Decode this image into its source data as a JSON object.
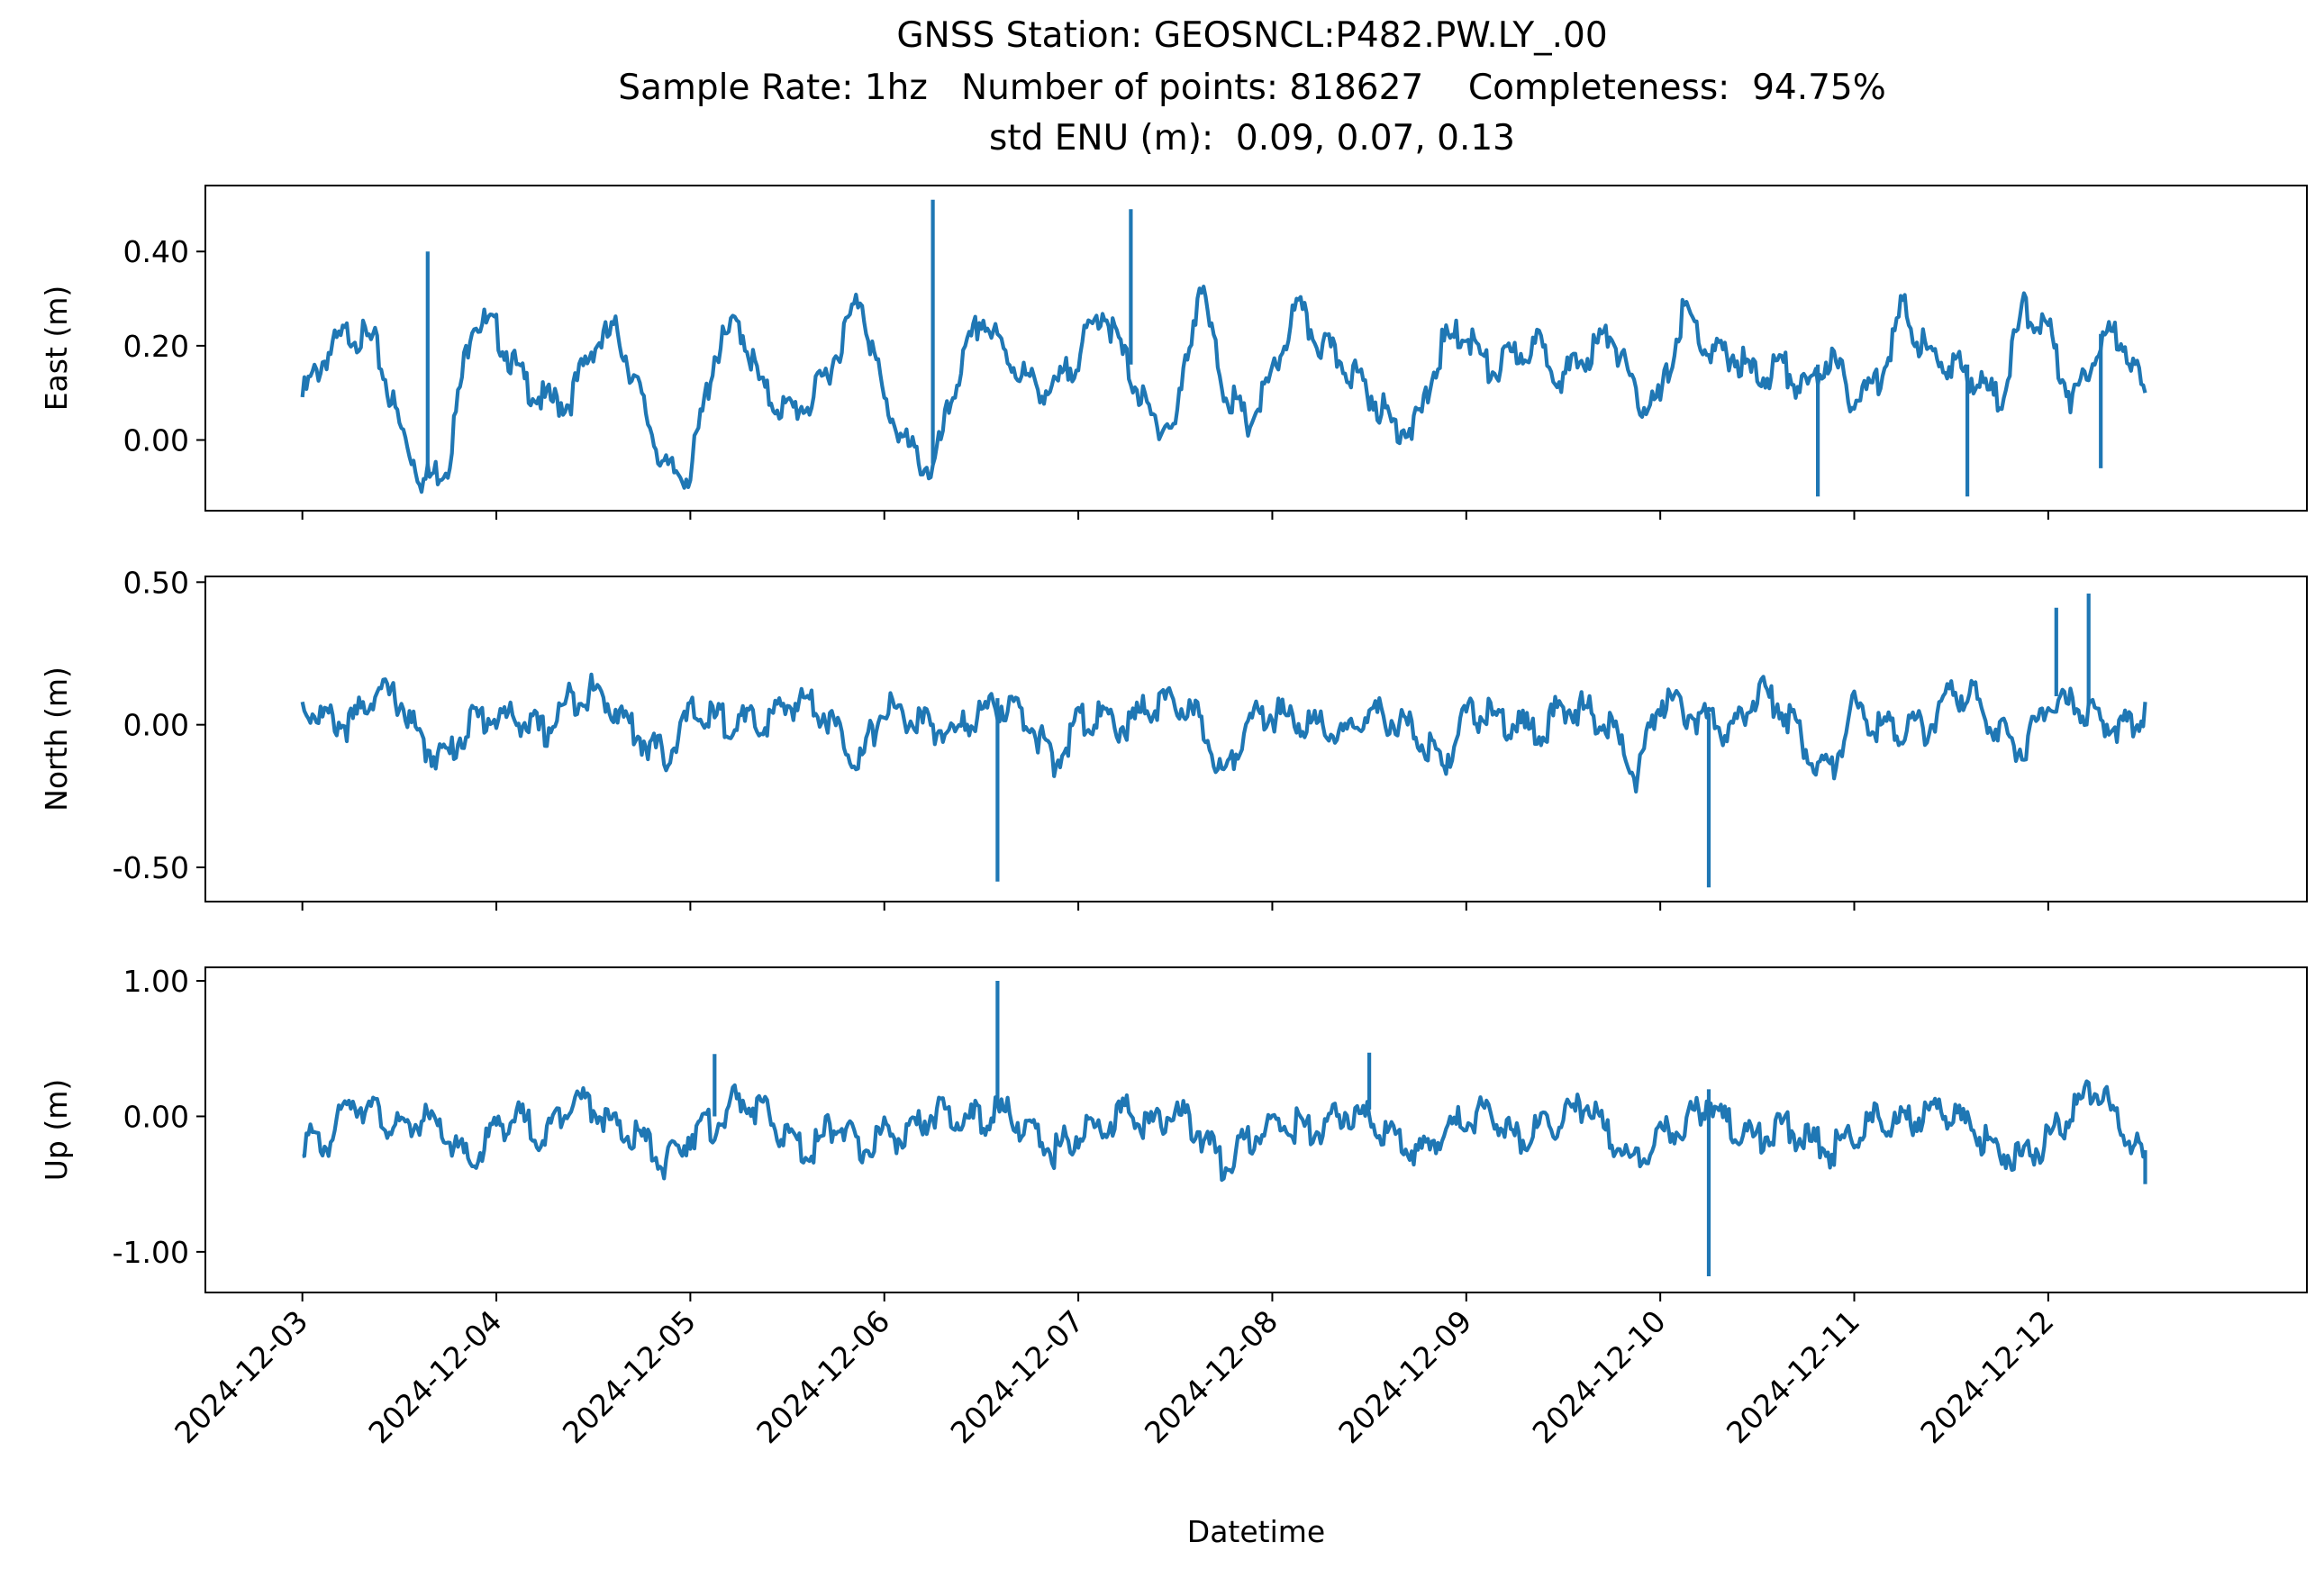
{
  "title": {
    "line1": "GNSS Station: GEOSNCL:P482.PW.LY_.00",
    "line2": "Sample Rate: 1hz   Number of points: 818627    Completeness:  94.75%",
    "line3": "std ENU (m):  0.09, 0.07, 0.13"
  },
  "colors": {
    "series": "#1f77b4",
    "axes": "#000000",
    "background": "#ffffff"
  },
  "chart_data": [
    {
      "type": "line",
      "ylabel": "East (m)",
      "xlabel": "",
      "ylim": [
        -0.15,
        0.54
      ],
      "yticks": [
        0.0,
        0.2,
        0.4
      ],
      "ytick_labels": [
        "0.00",
        "0.20",
        "0.40"
      ],
      "xlim": [
        "2024-12-02 12:00",
        "2024-12-13 08:00"
      ],
      "grid": false,
      "series": [
        {
          "x": [
            "2024-12-03 00:00",
            "2024-12-03 03:00",
            "2024-12-03 06:00",
            "2024-12-03 09:00",
            "2024-12-03 12:00",
            "2024-12-03 15:00",
            "2024-12-03 18:00",
            "2024-12-03 21:00",
            "2024-12-04 00:00",
            "2024-12-04 03:00",
            "2024-12-04 06:00",
            "2024-12-04 09:00",
            "2024-12-04 12:00",
            "2024-12-04 15:00",
            "2024-12-04 18:00",
            "2024-12-04 21:00",
            "2024-12-05 00:00",
            "2024-12-05 03:00",
            "2024-12-05 06:00",
            "2024-12-05 09:00",
            "2024-12-05 12:00",
            "2024-12-05 15:00",
            "2024-12-05 18:00",
            "2024-12-05 21:00",
            "2024-12-06 00:00",
            "2024-12-06 03:00",
            "2024-12-06 06:00",
            "2024-12-06 09:00",
            "2024-12-06 12:00",
            "2024-12-06 15:00",
            "2024-12-06 18:00",
            "2024-12-06 21:00",
            "2024-12-07 00:00",
            "2024-12-07 03:00",
            "2024-12-07 06:00",
            "2024-12-07 09:00",
            "2024-12-07 12:00",
            "2024-12-07 15:00",
            "2024-12-07 18:00",
            "2024-12-07 21:00",
            "2024-12-08 00:00",
            "2024-12-08 03:00",
            "2024-12-08 06:00",
            "2024-12-08 09:00",
            "2024-12-08 12:00",
            "2024-12-08 15:00",
            "2024-12-08 18:00",
            "2024-12-08 21:00",
            "2024-12-09 00:00",
            "2024-12-09 03:00",
            "2024-12-09 06:00",
            "2024-12-09 09:00",
            "2024-12-09 12:00",
            "2024-12-09 15:00",
            "2024-12-09 18:00",
            "2024-12-09 21:00",
            "2024-12-10 00:00",
            "2024-12-10 03:00",
            "2024-12-10 06:00",
            "2024-12-10 09:00",
            "2024-12-10 12:00",
            "2024-12-10 15:00",
            "2024-12-10 18:00",
            "2024-12-10 21:00",
            "2024-12-11 00:00",
            "2024-12-11 03:00",
            "2024-12-11 06:00",
            "2024-12-11 09:00",
            "2024-12-11 12:00",
            "2024-12-11 15:00",
            "2024-12-11 18:00",
            "2024-12-11 21:00",
            "2024-12-12 00:00",
            "2024-12-12 03:00",
            "2024-12-12 06:00",
            "2024-12-12 09:00",
            "2024-12-12 12:00"
          ],
          "values": [
            0.11,
            0.2,
            0.25,
            0.22,
            0.05,
            -0.07,
            -0.03,
            0.28,
            0.25,
            0.15,
            0.1,
            0.1,
            0.22,
            0.25,
            0.1,
            -0.05,
            -0.05,
            0.2,
            0.27,
            0.12,
            0.08,
            0.1,
            0.2,
            0.33,
            0.1,
            0.0,
            -0.05,
            0.15,
            0.28,
            0.2,
            0.14,
            0.12,
            0.2,
            0.3,
            0.18,
            0.06,
            0.05,
            0.35,
            0.13,
            0.05,
            0.15,
            0.3,
            0.22,
            0.18,
            0.12,
            0.05,
            0.05,
            0.22,
            0.25,
            0.16,
            0.2,
            0.22,
            0.15,
            0.2,
            0.25,
            0.1,
            0.1,
            0.3,
            0.2,
            0.2,
            0.15,
            0.18,
            0.12,
            0.2,
            0.1,
            0.15,
            0.3,
            0.2,
            0.18,
            0.15,
            0.1,
            0.3,
            0.25,
            0.1,
            0.22,
            0.25,
            0.1
          ],
          "spikes": [
            [
              "2024-12-03 15:30",
              0.4
            ],
            [
              "2024-12-06 06:00",
              0.51
            ],
            [
              "2024-12-07 06:30",
              0.49
            ],
            [
              "2024-12-10 19:30",
              -0.12
            ],
            [
              "2024-12-11 14:00",
              -0.12
            ],
            [
              "2024-12-12 06:30",
              -0.06
            ]
          ]
        }
      ]
    },
    {
      "type": "line",
      "ylabel": "North (m)",
      "xlabel": "",
      "ylim": [
        -0.62,
        0.52
      ],
      "yticks": [
        -0.5,
        0.0,
        0.5
      ],
      "ytick_labels": [
        "-0.50",
        "0.00",
        "0.50"
      ],
      "xlim": [
        "2024-12-02 12:00",
        "2024-12-13 08:00"
      ],
      "grid": false,
      "series": [
        {
          "x": [
            "2024-12-03 00:00",
            "2024-12-03 03:00",
            "2024-12-03 06:00",
            "2024-12-03 09:00",
            "2024-12-03 12:00",
            "2024-12-03 15:00",
            "2024-12-03 18:00",
            "2024-12-03 21:00",
            "2024-12-04 00:00",
            "2024-12-04 03:00",
            "2024-12-04 06:00",
            "2024-12-04 09:00",
            "2024-12-04 12:00",
            "2024-12-04 15:00",
            "2024-12-04 18:00",
            "2024-12-04 21:00",
            "2024-12-05 00:00",
            "2024-12-05 03:00",
            "2024-12-05 06:00",
            "2024-12-05 09:00",
            "2024-12-05 12:00",
            "2024-12-05 15:00",
            "2024-12-05 18:00",
            "2024-12-05 21:00",
            "2024-12-06 00:00",
            "2024-12-06 03:00",
            "2024-12-06 06:00",
            "2024-12-06 09:00",
            "2024-12-06 12:00",
            "2024-12-06 15:00",
            "2024-12-06 18:00",
            "2024-12-06 21:00",
            "2024-12-07 00:00",
            "2024-12-07 03:00",
            "2024-12-07 06:00",
            "2024-12-07 09:00",
            "2024-12-07 12:00",
            "2024-12-07 15:00",
            "2024-12-07 18:00",
            "2024-12-07 21:00",
            "2024-12-08 00:00",
            "2024-12-08 03:00",
            "2024-12-08 06:00",
            "2024-12-08 09:00",
            "2024-12-08 12:00",
            "2024-12-08 15:00",
            "2024-12-08 18:00",
            "2024-12-08 21:00",
            "2024-12-09 00:00",
            "2024-12-09 03:00",
            "2024-12-09 06:00",
            "2024-12-09 09:00",
            "2024-12-09 12:00",
            "2024-12-09 15:00",
            "2024-12-09 18:00",
            "2024-12-09 21:00",
            "2024-12-10 00:00",
            "2024-12-10 03:00",
            "2024-12-10 06:00",
            "2024-12-10 09:00",
            "2024-12-10 12:00",
            "2024-12-10 15:00",
            "2024-12-10 18:00",
            "2024-12-10 21:00",
            "2024-12-11 00:00",
            "2024-12-11 03:00",
            "2024-12-11 06:00",
            "2024-12-11 09:00",
            "2024-12-11 12:00",
            "2024-12-11 15:00",
            "2024-12-11 18:00",
            "2024-12-11 21:00",
            "2024-12-12 00:00",
            "2024-12-12 03:00",
            "2024-12-12 06:00",
            "2024-12-12 09:00",
            "2024-12-12 12:00"
          ],
          "values": [
            0.1,
            0.05,
            0.03,
            0.15,
            0.12,
            -0.05,
            -0.08,
            0.05,
            0.06,
            0.05,
            0.0,
            0.12,
            0.15,
            0.08,
            -0.02,
            -0.08,
            0.07,
            0.05,
            0.04,
            0.03,
            0.1,
            0.12,
            0.02,
            -0.1,
            0.1,
            0.05,
            0.02,
            0.0,
            0.08,
            0.1,
            0.05,
            -0.12,
            0.05,
            0.05,
            0.02,
            0.1,
            0.1,
            0.05,
            -0.15,
            0.05,
            0.07,
            0.05,
            0.02,
            -0.02,
            0.08,
            0.05,
            0.0,
            -0.12,
            0.07,
            0.06,
            0.03,
            0.0,
            0.1,
            0.08,
            0.02,
            -0.15,
            0.12,
            0.08,
            0.04,
            0.0,
            0.15,
            0.1,
            -0.05,
            -0.15,
            0.1,
            0.03,
            0.02,
            0.02,
            0.15,
            0.12,
            0.0,
            -0.05,
            0.1,
            0.1,
            0.05,
            0.02,
            0.08
          ],
          "spikes": [
            [
              "2024-12-06 14:00",
              -0.55
            ],
            [
              "2024-12-10 06:00",
              -0.57
            ],
            [
              "2024-12-12 01:00",
              0.41
            ],
            [
              "2024-12-12 05:00",
              0.46
            ]
          ]
        }
      ]
    },
    {
      "type": "line",
      "ylabel": "Up (m)",
      "xlabel": "Datetime",
      "ylim": [
        -1.3,
        1.1
      ],
      "yticks": [
        -1.0,
        0.0,
        1.0
      ],
      "ytick_labels": [
        "-1.00",
        "0.00",
        "1.00"
      ],
      "xlim": [
        "2024-12-02 12:00",
        "2024-12-13 08:00"
      ],
      "xtick_labels": [
        "2024-12-03",
        "2024-12-04",
        "2024-12-05",
        "2024-12-06",
        "2024-12-07",
        "2024-12-08",
        "2024-12-09",
        "2024-12-10",
        "2024-12-11",
        "2024-12-12"
      ],
      "grid": false,
      "series": [
        {
          "x": [
            "2024-12-03 00:00",
            "2024-12-03 03:00",
            "2024-12-03 06:00",
            "2024-12-03 09:00",
            "2024-12-03 12:00",
            "2024-12-03 15:00",
            "2024-12-03 18:00",
            "2024-12-03 21:00",
            "2024-12-04 00:00",
            "2024-12-04 03:00",
            "2024-12-04 06:00",
            "2024-12-04 09:00",
            "2024-12-04 12:00",
            "2024-12-04 15:00",
            "2024-12-04 18:00",
            "2024-12-04 21:00",
            "2024-12-05 00:00",
            "2024-12-05 03:00",
            "2024-12-05 06:00",
            "2024-12-05 09:00",
            "2024-12-05 12:00",
            "2024-12-05 15:00",
            "2024-12-05 18:00",
            "2024-12-05 21:00",
            "2024-12-06 00:00",
            "2024-12-06 03:00",
            "2024-12-06 06:00",
            "2024-12-06 09:00",
            "2024-12-06 12:00",
            "2024-12-06 15:00",
            "2024-12-06 18:00",
            "2024-12-06 21:00",
            "2024-12-07 00:00",
            "2024-12-07 03:00",
            "2024-12-07 06:00",
            "2024-12-07 09:00",
            "2024-12-07 12:00",
            "2024-12-07 15:00",
            "2024-12-07 18:00",
            "2024-12-07 21:00",
            "2024-12-08 00:00",
            "2024-12-08 03:00",
            "2024-12-08 06:00",
            "2024-12-08 09:00",
            "2024-12-08 12:00",
            "2024-12-08 15:00",
            "2024-12-08 18:00",
            "2024-12-08 21:00",
            "2024-12-09 00:00",
            "2024-12-09 03:00",
            "2024-12-09 06:00",
            "2024-12-09 09:00",
            "2024-12-09 12:00",
            "2024-12-09 15:00",
            "2024-12-09 18:00",
            "2024-12-09 21:00",
            "2024-12-10 00:00",
            "2024-12-10 03:00",
            "2024-12-10 06:00",
            "2024-12-10 09:00",
            "2024-12-10 12:00",
            "2024-12-10 15:00",
            "2024-12-10 18:00",
            "2024-12-10 21:00",
            "2024-12-11 00:00",
            "2024-12-11 03:00",
            "2024-12-11 06:00",
            "2024-12-11 09:00",
            "2024-12-11 12:00",
            "2024-12-11 15:00",
            "2024-12-11 18:00",
            "2024-12-11 21:00",
            "2024-12-12 00:00",
            "2024-12-12 03:00",
            "2024-12-12 06:00",
            "2024-12-12 09:00",
            "2024-12-12 12:00"
          ],
          "values": [
            -0.1,
            -0.15,
            0.2,
            0.1,
            -0.05,
            0.05,
            -0.1,
            -0.3,
            0.0,
            0.05,
            -0.1,
            0.2,
            0.15,
            -0.05,
            -0.1,
            -0.3,
            -0.05,
            0.0,
            0.2,
            0.1,
            -0.1,
            -0.2,
            0.05,
            -0.2,
            -0.05,
            -0.1,
            0.1,
            0.05,
            0.05,
            0.1,
            -0.05,
            -0.2,
            -0.05,
            0.0,
            0.1,
            0.0,
            0.1,
            -0.05,
            -0.3,
            -0.1,
            0.0,
            0.0,
            -0.05,
            0.1,
            0.05,
            -0.1,
            -0.2,
            -0.05,
            0.05,
            0.1,
            -0.1,
            -0.05,
            0.05,
            0.15,
            -0.1,
            -0.3,
            -0.05,
            0.0,
            0.2,
            -0.05,
            -0.1,
            0.0,
            -0.1,
            -0.2,
            -0.05,
            0.05,
            0.0,
            0.1,
            0.1,
            -0.05,
            -0.2,
            -0.25,
            -0.1,
            0.1,
            0.3,
            -0.05,
            -0.25
          ],
          "spikes": [
            [
              "2024-12-06 14:00",
              1.0
            ],
            [
              "2024-12-05 03:00",
              0.46
            ],
            [
              "2024-12-08 12:00",
              0.47
            ],
            [
              "2024-12-10 06:00",
              -1.18
            ],
            [
              "2024-12-12 12:00",
              -0.5
            ]
          ]
        }
      ]
    }
  ]
}
